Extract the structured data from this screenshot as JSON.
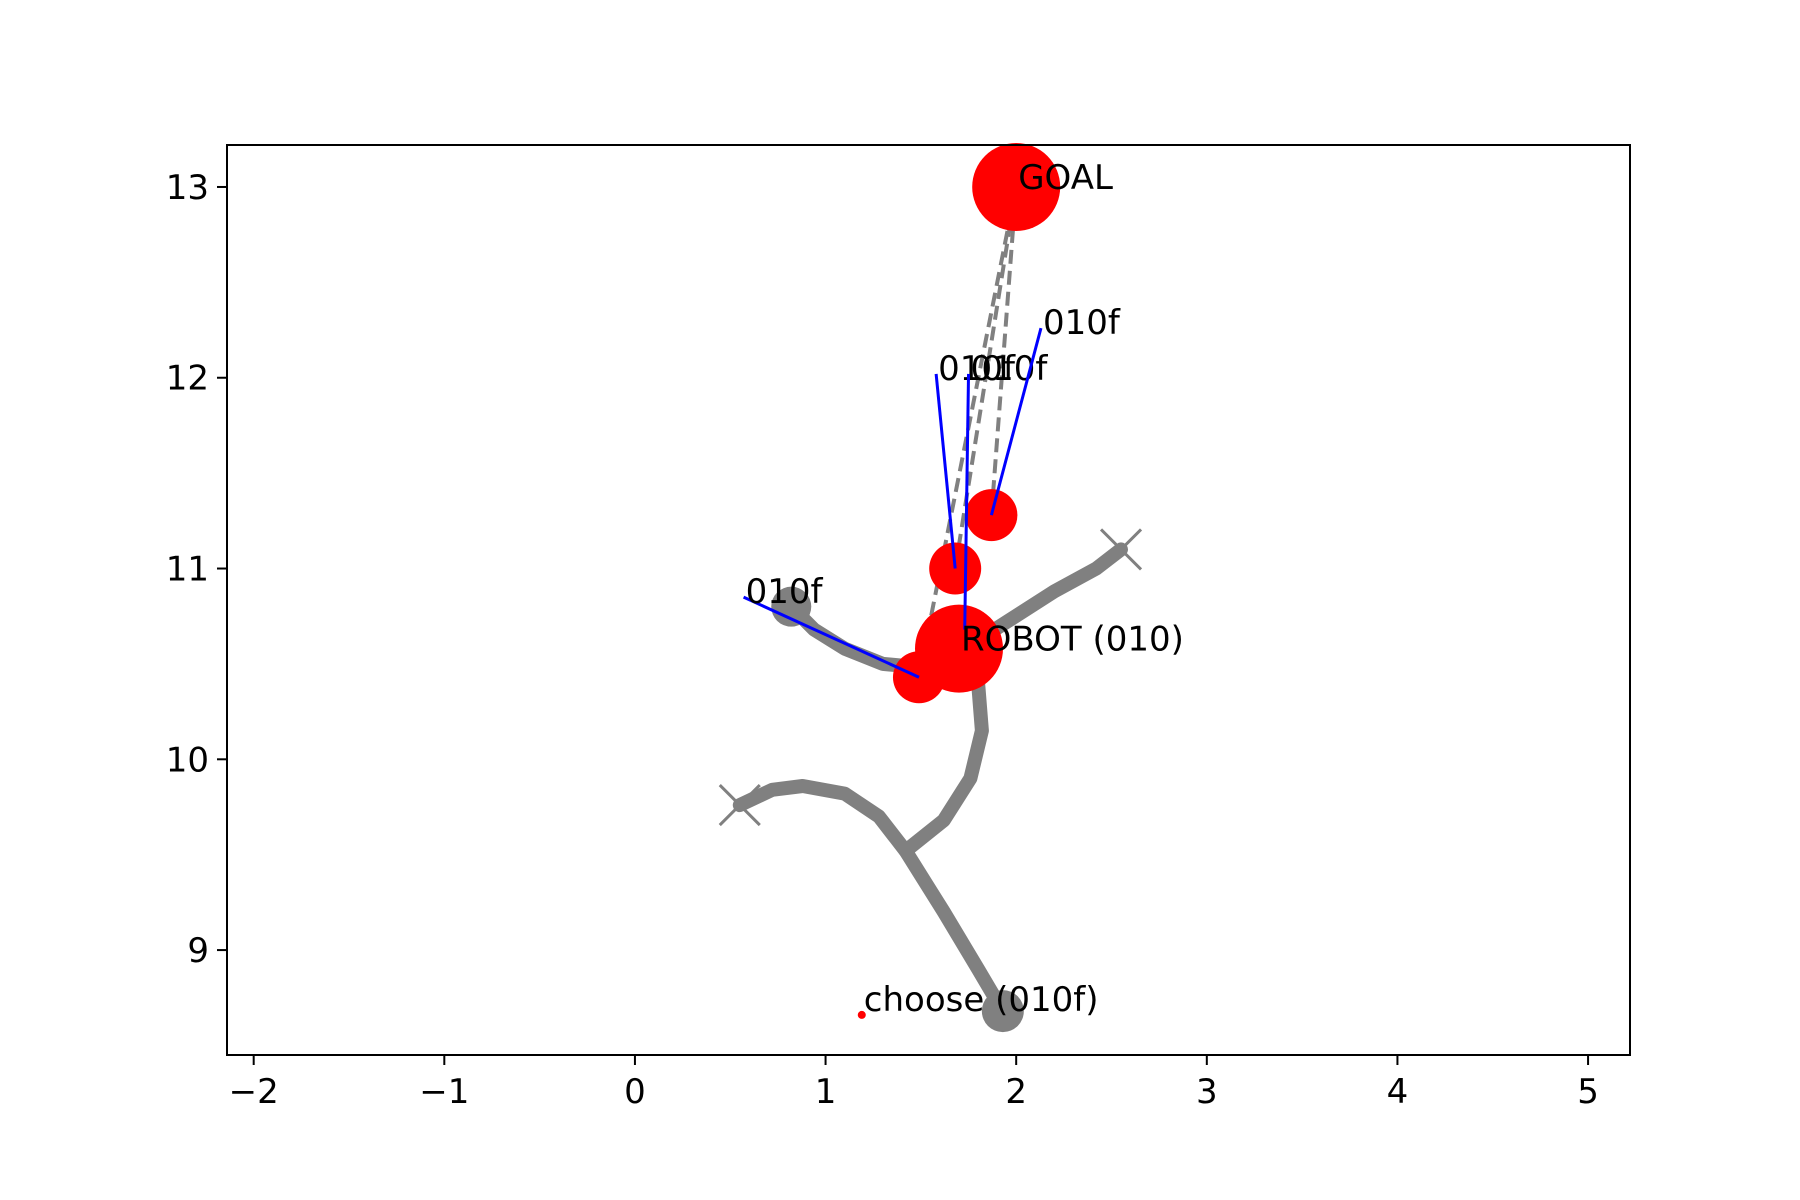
{
  "chart_data": {
    "type": "scatter",
    "title": "",
    "xlabel": "",
    "ylabel": "",
    "xlim": [
      -2.14,
      5.22
    ],
    "ylim": [
      8.45,
      13.22
    ],
    "x_ticks": [
      -2,
      -1,
      0,
      1,
      2,
      3,
      4,
      5
    ],
    "x_tick_labels": [
      "−2",
      "−1",
      "0",
      "1",
      "2",
      "3",
      "4",
      "5"
    ],
    "y_ticks": [
      9,
      10,
      11,
      12,
      13
    ],
    "y_tick_labels": [
      "9",
      "10",
      "11",
      "12",
      "13"
    ],
    "grid": false,
    "colors": {
      "path": "#808080",
      "agent": "#ff0000",
      "heading": "#0000ff",
      "dashed": "#808080",
      "axis": "#000000"
    },
    "trajectories": [
      {
        "points": [
          [
            1.93,
            8.68
          ],
          [
            1.8,
            8.9
          ],
          [
            1.62,
            9.2
          ],
          [
            1.42,
            9.52
          ],
          [
            1.28,
            9.7
          ],
          [
            1.1,
            9.82
          ],
          [
            0.88,
            9.86
          ],
          [
            0.72,
            9.84
          ],
          [
            0.55,
            9.76
          ]
        ],
        "end_marker": "cross"
      },
      {
        "points": [
          [
            1.42,
            9.52
          ],
          [
            1.62,
            9.68
          ],
          [
            1.76,
            9.9
          ],
          [
            1.82,
            10.15
          ],
          [
            1.8,
            10.4
          ],
          [
            1.7,
            10.56
          ]
        ]
      },
      {
        "points": [
          [
            1.7,
            10.56
          ],
          [
            1.95,
            10.72
          ],
          [
            2.2,
            10.88
          ],
          [
            2.42,
            11.0
          ],
          [
            2.55,
            11.1
          ]
        ],
        "end_marker": "cross"
      },
      {
        "points": [
          [
            1.7,
            10.56
          ],
          [
            1.52,
            10.48
          ],
          [
            1.3,
            10.5
          ],
          [
            1.1,
            10.58
          ],
          [
            0.94,
            10.68
          ],
          [
            0.82,
            10.8
          ]
        ],
        "end_marker": "dot"
      }
    ],
    "start_point": {
      "x": 1.93,
      "y": 8.68
    },
    "agents": [
      {
        "x": 2.0,
        "y": 13.0,
        "size": "large",
        "label": "GOAL"
      },
      {
        "x": 1.7,
        "y": 10.58,
        "size": "large",
        "label": "ROBOT (010)"
      },
      {
        "x": 1.49,
        "y": 10.43,
        "size": "medium"
      },
      {
        "x": 1.68,
        "y": 11.0,
        "size": "medium"
      },
      {
        "x": 1.87,
        "y": 11.28,
        "size": "medium"
      }
    ],
    "headings": [
      {
        "from": [
          1.49,
          10.43
        ],
        "to": [
          0.57,
          10.85
        ],
        "label": "010f"
      },
      {
        "from": [
          1.68,
          11.0
        ],
        "to": [
          1.58,
          12.02
        ],
        "label": "010f"
      },
      {
        "from": [
          1.73,
          10.68
        ],
        "to": [
          1.75,
          12.02
        ],
        "label": "010f"
      },
      {
        "from": [
          1.87,
          11.28
        ],
        "to": [
          2.13,
          12.26
        ],
        "label": "010f"
      }
    ],
    "dashed_lines": [
      {
        "from": [
          1.49,
          10.43
        ],
        "to": [
          2.0,
          13.0
        ]
      },
      {
        "from": [
          1.68,
          11.0
        ],
        "to": [
          2.0,
          13.0
        ]
      },
      {
        "from": [
          1.87,
          11.28
        ],
        "to": [
          2.0,
          13.0
        ]
      }
    ],
    "annotations": [
      {
        "x": 1.19,
        "y": 8.66,
        "text": "choose (010f)"
      }
    ]
  }
}
